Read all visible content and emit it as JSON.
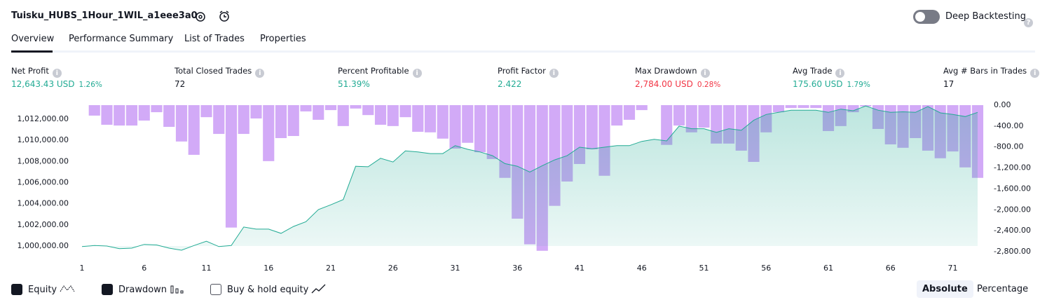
{
  "header": {
    "title": "Tuisku_HUBS_1Hour_1WIL_a1eee3a0",
    "deep_backtesting": "Deep Backtesting"
  },
  "tabs": [
    "Overview",
    "Performance Summary",
    "List of Trades",
    "Properties"
  ],
  "metrics": [
    {
      "label": "Net Profit",
      "value": "12,643.43 USD",
      "pct": "1.26%",
      "color": "#22ab94"
    },
    {
      "label": "Total Closed Trades",
      "value": "72",
      "color": "#131722"
    },
    {
      "label": "Percent Profitable",
      "value": "51.39%",
      "color": "#22ab94"
    },
    {
      "label": "Profit Factor",
      "value": "2.422",
      "color": "#22ab94"
    },
    {
      "label": "Max Drawdown",
      "value": "2,784.00 USD",
      "pct": "0.28%",
      "color": "#f23645"
    },
    {
      "label": "Avg Trade",
      "value": "175.60 USD",
      "pct": "1.79%",
      "color": "#22ab94"
    },
    {
      "label": "Avg # Bars in Trades",
      "value": "17",
      "color": "#131722"
    }
  ],
  "chart_data": {
    "type": "bar-line",
    "x": [
      1,
      2,
      3,
      4,
      5,
      6,
      7,
      8,
      9,
      10,
      11,
      12,
      13,
      14,
      15,
      16,
      17,
      18,
      19,
      20,
      21,
      22,
      23,
      24,
      25,
      26,
      27,
      28,
      29,
      30,
      31,
      32,
      33,
      34,
      35,
      36,
      37,
      38,
      39,
      40,
      41,
      42,
      43,
      44,
      45,
      46,
      47,
      48,
      49,
      50,
      51,
      52,
      53,
      54,
      55,
      56,
      57,
      58,
      59,
      60,
      61,
      62,
      63,
      64,
      65,
      66,
      67,
      68,
      69,
      70,
      71,
      72,
      73
    ],
    "xlim": [
      1,
      73
    ],
    "xticks": [
      1,
      6,
      11,
      16,
      21,
      26,
      31,
      36,
      41,
      46,
      51,
      56,
      61,
      66,
      71
    ],
    "ylim": [
      999470,
      1013330
    ],
    "yticks": [
      {
        "value": 1000000,
        "label": "1,000,000.00"
      },
      {
        "value": 1002000,
        "label": "1,002,000.00"
      },
      {
        "value": 1004000,
        "label": "1,004,000.00"
      },
      {
        "value": 1006000,
        "label": "1,006,000.00"
      },
      {
        "value": 1008000,
        "label": "1,008,000.00"
      },
      {
        "value": 1010000,
        "label": "1,010,000.00"
      },
      {
        "value": 1012000,
        "label": "1,012,000.00"
      }
    ],
    "y2lim": [
      -2800,
      0
    ],
    "y2ticks": [
      {
        "value": 0,
        "label": "0.00"
      },
      {
        "value": -400,
        "label": "-400.00"
      },
      {
        "value": -800,
        "label": "-800.00"
      },
      {
        "value": -1200,
        "label": "-1,200.00"
      },
      {
        "value": -1600,
        "label": "-1,600.00"
      },
      {
        "value": -2000,
        "label": "-2,000.00"
      },
      {
        "value": -2400,
        "label": "-2,400.00"
      },
      {
        "value": -2800,
        "label": "-2,800.00"
      }
    ],
    "series": [
      {
        "name": "Equity",
        "color": "#22ab94",
        "values": [
          999950,
          1000050,
          1000000,
          999750,
          999800,
          1000150,
          1000100,
          999800,
          999600,
          1000050,
          1000450,
          999950,
          1000050,
          1001800,
          1001600,
          1001600,
          1001200,
          1001850,
          1002300,
          1003450,
          1003900,
          1004400,
          1007550,
          1007500,
          1008300,
          1007950,
          1009000,
          1008900,
          1008750,
          1008750,
          1009500,
          1009150,
          1008900,
          1008550,
          1007800,
          1007550,
          1007000,
          1007600,
          1008150,
          1008550,
          1009350,
          1009200,
          1009350,
          1009500,
          1009500,
          1009900,
          1010100,
          1009950,
          1011350,
          1011100,
          1011100,
          1010750,
          1011100,
          1010950,
          1011900,
          1012450,
          1012650,
          1012850,
          1012850,
          1012850,
          1012650,
          1012950,
          1012800,
          1013250,
          1012850,
          1012650,
          1012700,
          1012650,
          1013200,
          1012600,
          1012450,
          1012250,
          1012650
        ]
      },
      {
        "name": "Drawdown",
        "color": "#d2aaf7",
        "axis": "y2",
        "values": [
          null,
          -200,
          -375,
          -390,
          -390,
          -295,
          -135,
          -415,
          -695,
          -950,
          -230,
          -550,
          -2340,
          -550,
          -255,
          -1070,
          -630,
          -590,
          -120,
          -280,
          -95,
          -400,
          -65,
          -190,
          -375,
          -400,
          -230,
          -510,
          -520,
          -640,
          -830,
          -720,
          -900,
          -1030,
          -1390,
          -2170,
          -2660,
          -2784,
          -1925,
          -1460,
          -1125,
          -845,
          -1350,
          -390,
          -280,
          -95,
          0,
          -760,
          -390,
          -520,
          -430,
          -735,
          -735,
          -870,
          -1085,
          -520,
          -135,
          -55,
          -55,
          -55,
          -495,
          -400,
          -135,
          -25,
          -455,
          -750,
          -815,
          -630,
          -870,
          -1015,
          -885,
          -1190,
          -1390
        ]
      }
    ],
    "buy_hold": "Buy & hold equity"
  },
  "modes": [
    "Absolute",
    "Percentage"
  ]
}
